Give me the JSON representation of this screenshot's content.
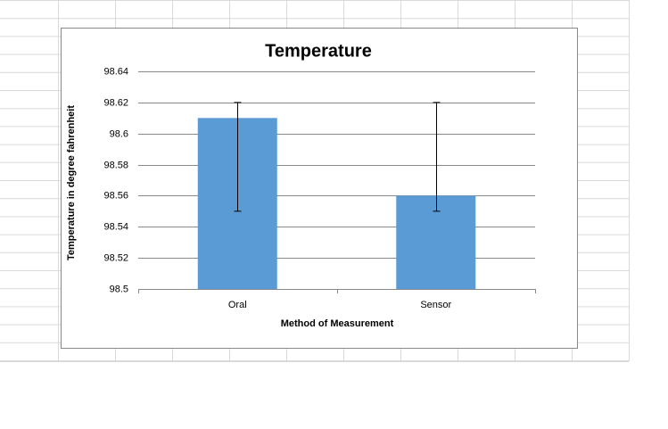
{
  "chart_data": {
    "type": "bar",
    "title": "Temperature",
    "x_label": "Method of Measurement",
    "y_label": "Temperature in degree fahrenheit",
    "categories": [
      "Oral",
      "Sensor"
    ],
    "values": [
      98.61,
      98.56
    ],
    "error_plus": [
      0.01,
      0.06
    ],
    "error_minus": [
      0.06,
      0.01
    ],
    "color": "#5b9bd5",
    "ylim": [
      98.5,
      98.64
    ],
    "yticks": [
      98.5,
      98.52,
      98.54,
      98.56,
      98.58,
      98.6,
      98.62,
      98.64
    ],
    "grid": true
  }
}
